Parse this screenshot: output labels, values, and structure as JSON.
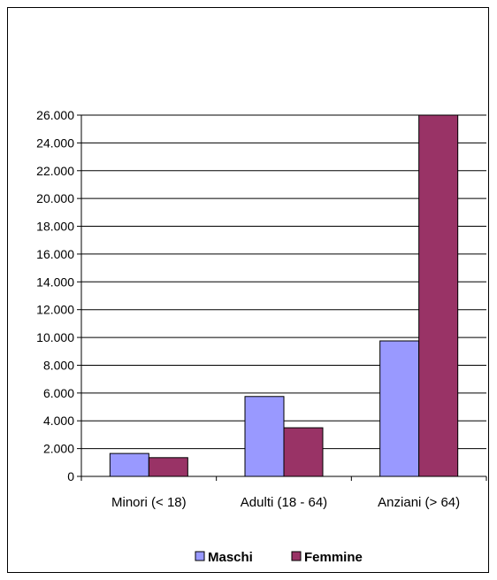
{
  "chart_data": {
    "type": "bar",
    "title": "",
    "xlabel": "",
    "ylabel": "",
    "categories": [
      "Minori (< 18)",
      "Adulti (18 - 64)",
      "Anziani (> 64)"
    ],
    "series": [
      {
        "name": "Maschi",
        "color": "#9999FF",
        "values": [
          1650,
          5750,
          9750
        ]
      },
      {
        "name": "Femmine",
        "color": "#993366",
        "values": [
          1350,
          3500,
          26000
        ]
      }
    ],
    "ylim": [
      0,
      26000
    ],
    "yticks": [
      0,
      2000,
      4000,
      6000,
      8000,
      10000,
      12000,
      14000,
      16000,
      18000,
      20000,
      22000,
      24000,
      26000
    ],
    "ytick_labels": [
      "0",
      "2.000",
      "4.000",
      "6.000",
      "8.000",
      "10.000",
      "12.000",
      "14.000",
      "16.000",
      "18.000",
      "20.000",
      "22.000",
      "24.000",
      "26.000"
    ],
    "grid": true,
    "legend": "bottom"
  }
}
